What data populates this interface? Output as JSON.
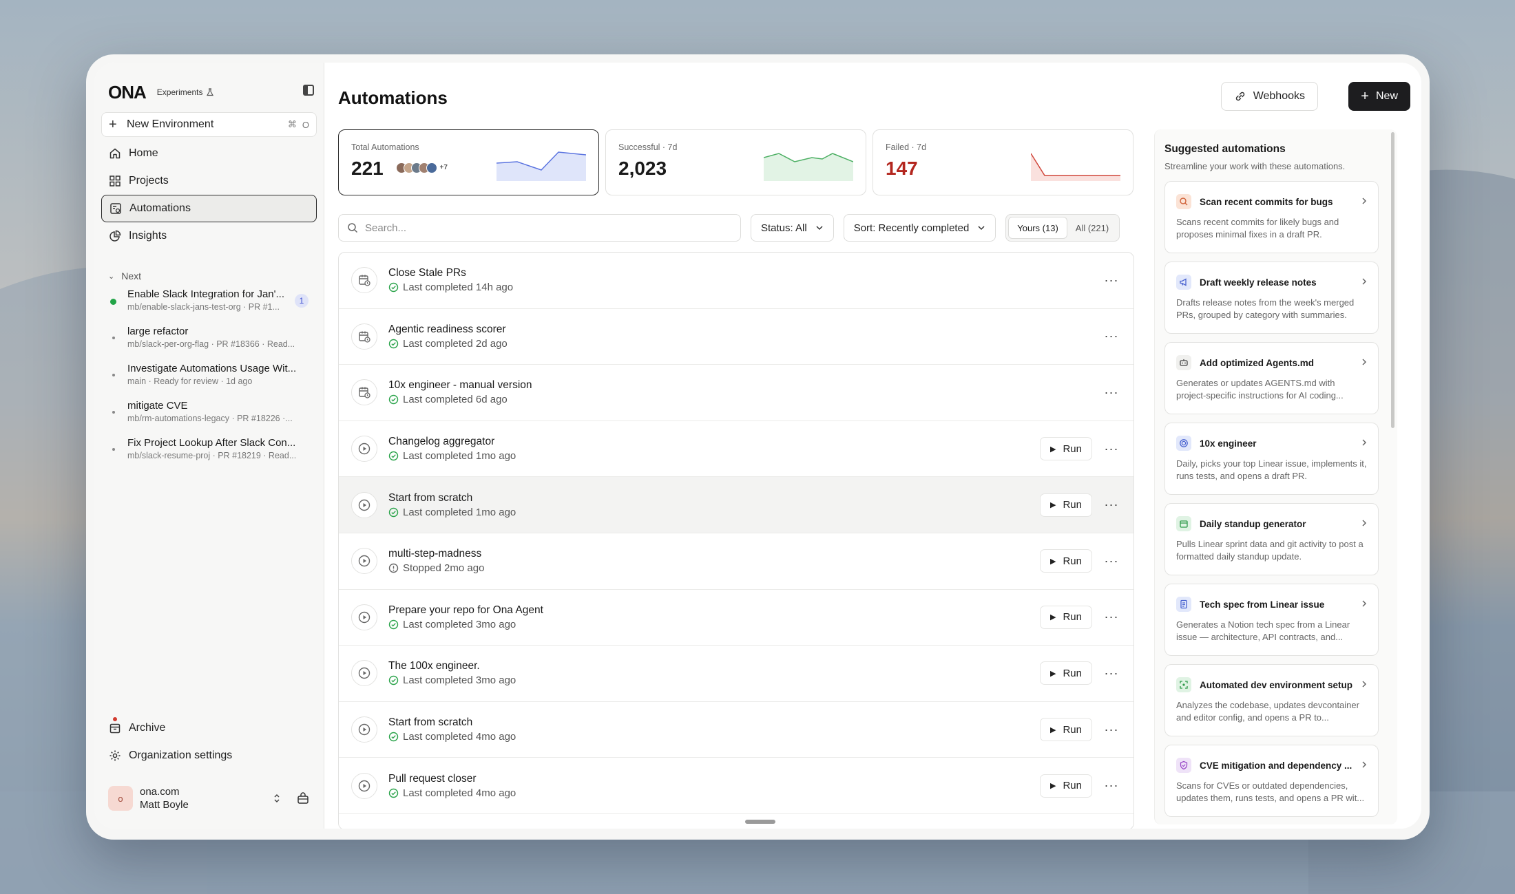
{
  "sidebar": {
    "logo": "ONA",
    "experiments_label": "Experiments",
    "new_env": {
      "label": "New Environment",
      "kbd1": "⌘",
      "kbd2": "O"
    },
    "nav": [
      {
        "label": "Home",
        "icon": "home-icon"
      },
      {
        "label": "Projects",
        "icon": "grid-icon"
      },
      {
        "label": "Automations",
        "icon": "automation-icon",
        "active": true
      },
      {
        "label": "Insights",
        "icon": "pie-chart-icon"
      }
    ],
    "section_label": "Next",
    "environments": [
      {
        "title": "Enable Slack Integration for Jan'...",
        "sub": "mb/enable-slack-jans-test-org · PR #1...",
        "badge": "1",
        "status": "running"
      },
      {
        "title": "large refactor",
        "sub": "mb/slack-per-org-flag · PR #18366 · Read..."
      },
      {
        "title": "Investigate Automations Usage Wit...",
        "sub": "main · Ready for review · 1d ago"
      },
      {
        "title": "mitigate CVE",
        "sub": "mb/rm-automations-legacy · PR #18226 ·..."
      },
      {
        "title": "Fix Project Lookup After Slack Con...",
        "sub": "mb/slack-resume-proj · PR #18219 · Read..."
      }
    ],
    "archive_label": "Archive",
    "org_settings_label": "Organization settings",
    "user": {
      "initial": "o",
      "org": "ona.com",
      "name": "Matt Boyle"
    }
  },
  "main": {
    "title": "Automations",
    "webhooks_label": "Webhooks",
    "new_label": "New",
    "stats": [
      {
        "label": "Total Automations",
        "value": "221",
        "more": "+7"
      },
      {
        "label": "Successful · 7d",
        "value": "2,023"
      },
      {
        "label": "Failed · 7d",
        "value": "147"
      }
    ],
    "search_placeholder": "Search...",
    "status_filter": "Status: All",
    "sort_filter": "Sort: Recently completed",
    "seg_yours": "Yours (13)",
    "seg_all": "All (221)",
    "run_label": "Run",
    "rows": [
      {
        "title": "Close Stale PRs",
        "sub": "Last completed 14h ago",
        "type": "scheduled",
        "status": "ok",
        "run": false
      },
      {
        "title": "Agentic readiness scorer",
        "sub": "Last completed 2d ago",
        "type": "scheduled",
        "status": "ok",
        "run": false
      },
      {
        "title": "10x engineer - manual version",
        "sub": "Last completed 6d ago",
        "type": "scheduled",
        "status": "ok",
        "run": false
      },
      {
        "title": "Changelog aggregator",
        "sub": "Last completed 1mo ago",
        "type": "manual",
        "status": "ok",
        "run": true
      },
      {
        "title": "Start from scratch",
        "sub": "Last completed 1mo ago",
        "type": "manual",
        "status": "ok",
        "run": true,
        "hover": true
      },
      {
        "title": "multi-step-madness",
        "sub": "Stopped 2mo ago",
        "type": "manual",
        "status": "stopped",
        "run": true
      },
      {
        "title": "Prepare your repo for Ona Agent",
        "sub": "Last completed 3mo ago",
        "type": "manual",
        "status": "ok",
        "run": true
      },
      {
        "title": "The 100x engineer.",
        "sub": "Last completed 3mo ago",
        "type": "manual",
        "status": "ok",
        "run": true
      },
      {
        "title": "Start from scratch",
        "sub": "Last completed 4mo ago",
        "type": "manual",
        "status": "ok",
        "run": true
      },
      {
        "title": "Pull request closer",
        "sub": "Last completed 4mo ago",
        "type": "manual",
        "status": "ok",
        "run": true
      }
    ]
  },
  "suggested": {
    "title": "Suggested automations",
    "subtitle": "Streamline your work with these automations.",
    "items": [
      {
        "name": "Scan recent commits for bugs",
        "desc": "Scans recent commits for likely bugs and proposes minimal fixes in a draft PR.",
        "icon": "search-icon",
        "color": "#fbe3d6"
      },
      {
        "name": "Draft weekly release notes",
        "desc": "Drafts release notes from the week's merged PRs, grouped by category with summaries.",
        "icon": "megaphone-icon",
        "color": "#e2e8fb"
      },
      {
        "name": "Add optimized Agents.md",
        "desc": "Generates or updates AGENTS.md with project-specific instructions for AI coding...",
        "icon": "robot-icon",
        "color": "#f0f0ee"
      },
      {
        "name": "10x engineer",
        "desc": "Daily, picks your top Linear issue, implements it, runs tests, and opens a draft PR.",
        "icon": "target-icon",
        "color": "#e2e8fb"
      },
      {
        "name": "Daily standup generator",
        "desc": "Pulls Linear sprint data and git activity to post a formatted daily standup update.",
        "icon": "calendar-icon",
        "color": "#e0f3e4"
      },
      {
        "name": "Tech spec from Linear issue",
        "desc": "Generates a Notion tech spec from a Linear issue — architecture, API contracts, and...",
        "icon": "document-icon",
        "color": "#e2e8fb"
      },
      {
        "name": "Automated dev environment setup",
        "desc": "Analyzes the codebase, updates devcontainer and editor config, and opens a PR to...",
        "icon": "scan-icon",
        "color": "#e0f3e4"
      },
      {
        "name": "CVE mitigation and dependency ...",
        "desc": "Scans for CVEs or outdated dependencies, updates them, runs tests, and opens a PR wit...",
        "icon": "shield-icon",
        "color": "#efe3f8"
      }
    ]
  },
  "colors": {
    "accent_blue": "#5b74e0",
    "success": "#2aa34a",
    "danger": "#b3261e"
  }
}
